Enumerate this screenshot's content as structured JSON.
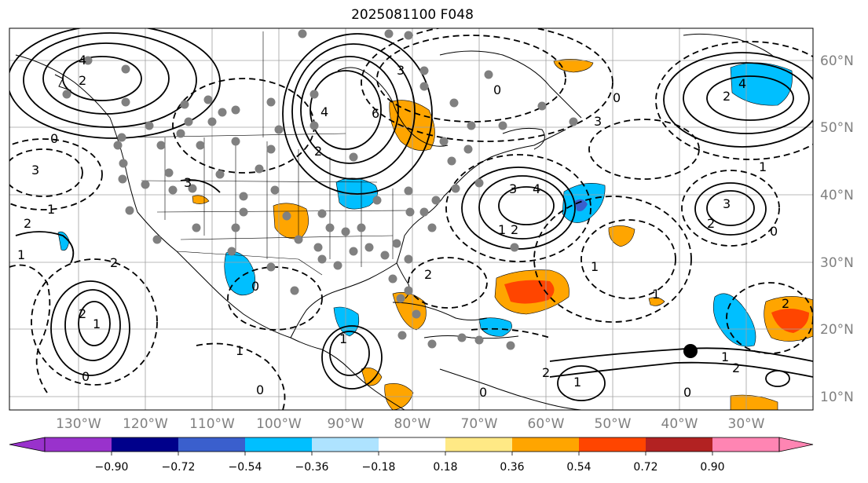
{
  "title": "2025081100 F048",
  "lon_labels": [
    "130°W",
    "120°W",
    "110°W",
    "100°W",
    "90°W",
    "80°W",
    "70°W",
    "60°W",
    "50°W",
    "40°W",
    "30°W"
  ],
  "lat_labels": [
    "60°N",
    "50°N",
    "40°N",
    "30°N",
    "20°N",
    "10°N"
  ],
  "colorbar": {
    "ticks": [
      "−0.90",
      "−0.72",
      "−0.54",
      "−0.36",
      "−0.18",
      "0.18",
      "0.36",
      "0.54",
      "0.72",
      "0.90"
    ],
    "colors": [
      "#9932cc",
      "#00008b",
      "#3a5fcd",
      "#00bfff",
      "#aee3ff",
      "#ffffff",
      "#ffe985",
      "#ffa500",
      "#ff4500",
      "#b22222",
      "#ff85b3"
    ]
  },
  "contour_labels": [
    "2",
    "4",
    "4",
    "3",
    "2",
    "6",
    "4",
    "3",
    "1",
    "0",
    "2",
    "1",
    "0",
    "3",
    "2",
    "4",
    "3",
    "2",
    "0",
    "3",
    "1",
    "0",
    "2",
    "1",
    "0",
    "1",
    "2",
    "0",
    "1",
    "1",
    "2",
    "3",
    "2",
    "1",
    "0",
    "1",
    "2",
    "2",
    "1",
    "0",
    "1",
    "2",
    "0"
  ]
}
